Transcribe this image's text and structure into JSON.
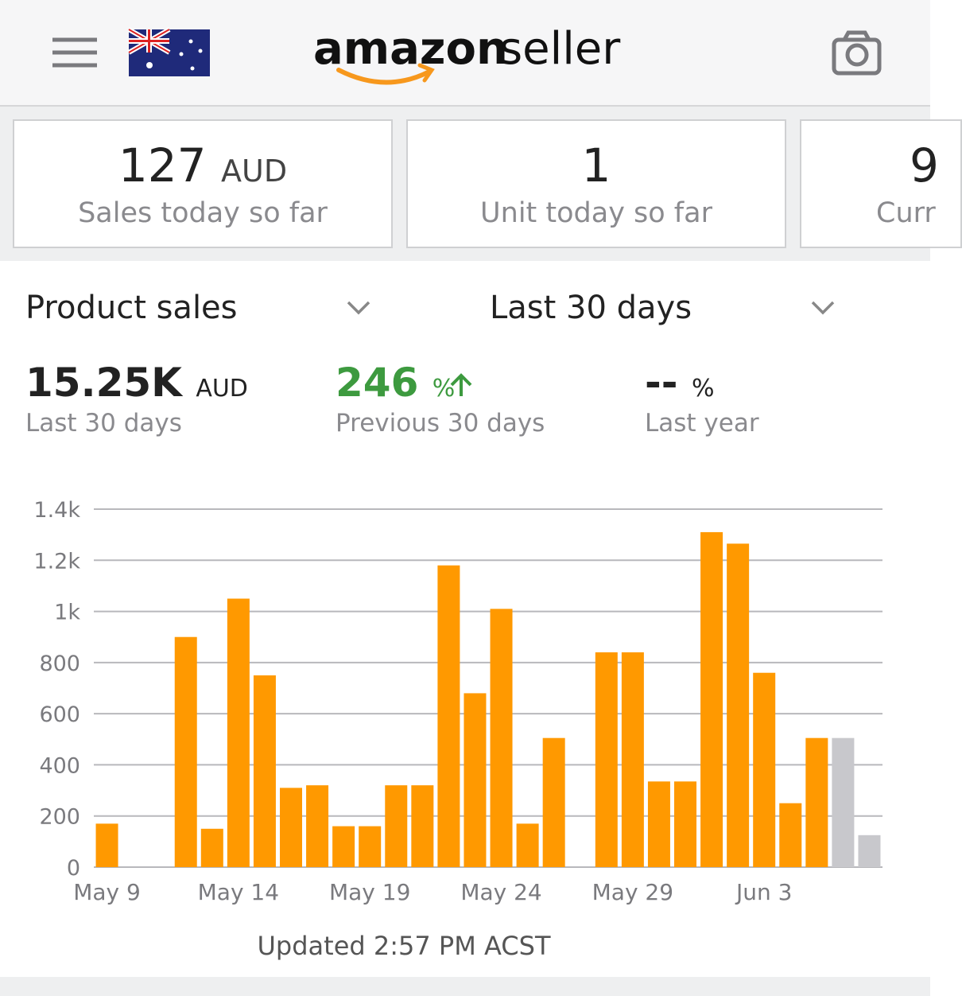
{
  "header": {
    "logo_brand": "amazon",
    "logo_suffix": "seller"
  },
  "cards": [
    {
      "value": "127",
      "unit": "AUD",
      "label": "Sales today so far"
    },
    {
      "value": "1",
      "label": "Unit today so far"
    },
    {
      "value": "9",
      "label": "Curr"
    }
  ],
  "selectors": {
    "metric": "Product sales",
    "period": "Last 30 days"
  },
  "metrics": [
    {
      "value": "15.25K",
      "unit": "AUD",
      "label": "Last 30 days"
    },
    {
      "value": "246",
      "unit": "%",
      "label": "Previous 30 days"
    },
    {
      "value": "--",
      "unit": "%",
      "label": "Last year"
    }
  ],
  "chart_data": {
    "type": "bar",
    "categories": [
      "May 9",
      null,
      null,
      null,
      null,
      "May 14",
      null,
      null,
      null,
      null,
      "May 19",
      null,
      null,
      null,
      null,
      "May 24",
      null,
      null,
      null,
      null,
      "May 29",
      null,
      null,
      null,
      null,
      "Jun 3",
      null,
      null,
      null,
      null
    ],
    "values": [
      170,
      0,
      0,
      900,
      150,
      1050,
      750,
      310,
      320,
      160,
      160,
      320,
      320,
      1180,
      680,
      1010,
      170,
      505,
      0,
      840,
      840,
      335,
      335,
      1310,
      1265,
      760,
      250,
      505,
      505,
      125
    ],
    "colors": [
      "#ff9900",
      "#ff9900",
      "#ff9900",
      "#ff9900",
      "#ff9900",
      "#ff9900",
      "#ff9900",
      "#ff9900",
      "#ff9900",
      "#ff9900",
      "#ff9900",
      "#ff9900",
      "#ff9900",
      "#ff9900",
      "#ff9900",
      "#ff9900",
      "#ff9900",
      "#ff9900",
      "#ff9900",
      "#ff9900",
      "#ff9900",
      "#ff9900",
      "#ff9900",
      "#ff9900",
      "#ff9900",
      "#ff9900",
      "#ff9900",
      "#ff9900",
      "#c8c8cc",
      "#c8c8cc"
    ],
    "ylim": [
      0,
      1400
    ],
    "yticks": [
      0,
      200,
      400,
      600,
      800,
      {
        "value": 1000,
        "label": "1k"
      },
      {
        "value": 1200,
        "label": "1.2k"
      },
      {
        "value": 1400,
        "label": "1.4k"
      }
    ],
    "grid": true
  },
  "footer": {
    "updated": "Updated 2:57 PM ACST"
  }
}
